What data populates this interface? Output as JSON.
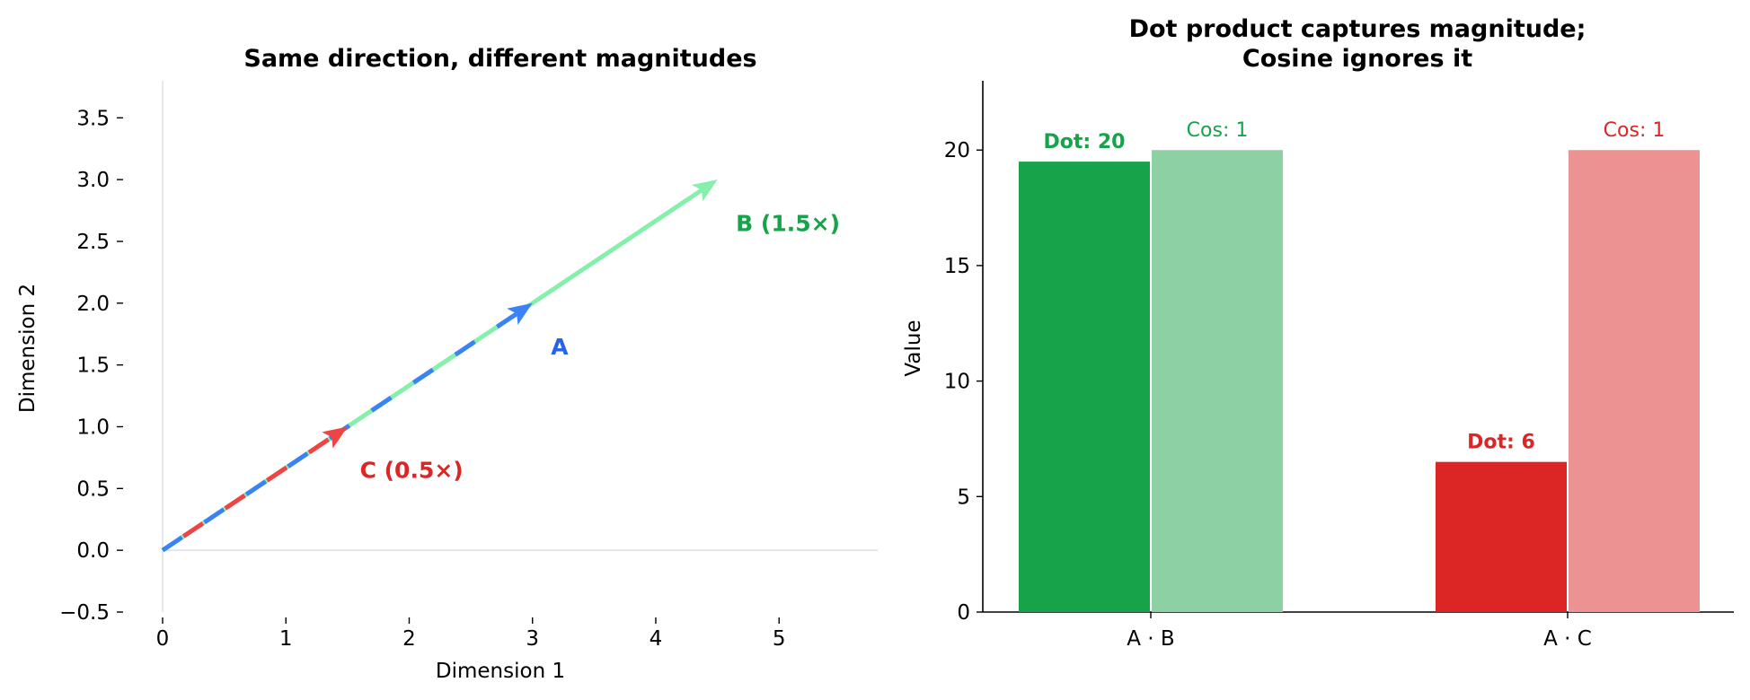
{
  "chart_data": [
    {
      "type": "line",
      "title": "Same direction, different magnitudes",
      "xlabel": "Dimension 1",
      "ylabel": "Dimension 2",
      "xlim": [
        0,
        5.8
      ],
      "ylim": [
        -0.5,
        3.8
      ],
      "x_ticks": [
        0,
        1,
        2,
        3,
        4,
        5
      ],
      "y_ticks": [
        -0.5,
        0.0,
        0.5,
        1.0,
        1.5,
        2.0,
        2.5,
        3.0,
        3.5
      ],
      "x_tick_labels": [
        "0",
        "1",
        "2",
        "3",
        "4",
        "5"
      ],
      "y_tick_labels": [
        "−0.5",
        "0.0",
        "0.5",
        "1.0",
        "1.5",
        "2.0",
        "2.5",
        "3.0",
        "3.5"
      ],
      "grid": false,
      "series": [
        {
          "name": "B (1.5×)",
          "start": [
            0,
            0
          ],
          "end": [
            4.5,
            3.0
          ],
          "color": "#86efac",
          "label_color": "#16a34a",
          "label_at": [
            4.65,
            2.65
          ],
          "style": "solid"
        },
        {
          "name": "A",
          "start": [
            0,
            0
          ],
          "end": [
            3.0,
            2.0
          ],
          "color": "#3b82f6",
          "label_color": "#2563eb",
          "label_at": [
            3.15,
            1.65
          ],
          "style": "dashed"
        },
        {
          "name": "C (0.5×)",
          "start": [
            0,
            0
          ],
          "end": [
            1.5,
            1.0
          ],
          "color": "#ef4444",
          "label_color": "#dc2626",
          "label_at": [
            1.6,
            0.65
          ],
          "style": "dashed"
        }
      ]
    },
    {
      "type": "bar",
      "title": "Dot product captures magnitude;\nCosine ignores it",
      "title_lines": [
        "Dot product captures magnitude;",
        "Cosine ignores it"
      ],
      "xlabel": "",
      "ylabel": "Value",
      "ylim": [
        0,
        23
      ],
      "y_ticks": [
        0,
        5,
        10,
        15,
        20
      ],
      "y_tick_labels": [
        "0",
        "5",
        "10",
        "15",
        "20"
      ],
      "categories": [
        "A · B",
        "A · C"
      ],
      "grid": false,
      "bars": [
        {
          "category": 0,
          "value": 19.5,
          "color": "#16a34a",
          "label": "Dot: 20",
          "label_color": "#16a34a",
          "bold": true
        },
        {
          "category": 0,
          "value": 20,
          "color": "#8dd0a4",
          "label": "Cos: 1",
          "label_color": "#16a34a",
          "bold": false
        },
        {
          "category": 1,
          "value": 6.5,
          "color": "#dc2626",
          "label": "Dot: 6",
          "label_color": "#dc2626",
          "bold": true
        },
        {
          "category": 1,
          "value": 20,
          "color": "#ec9292",
          "label": "Cos: 1",
          "label_color": "#dc2626",
          "bold": false
        }
      ]
    }
  ]
}
